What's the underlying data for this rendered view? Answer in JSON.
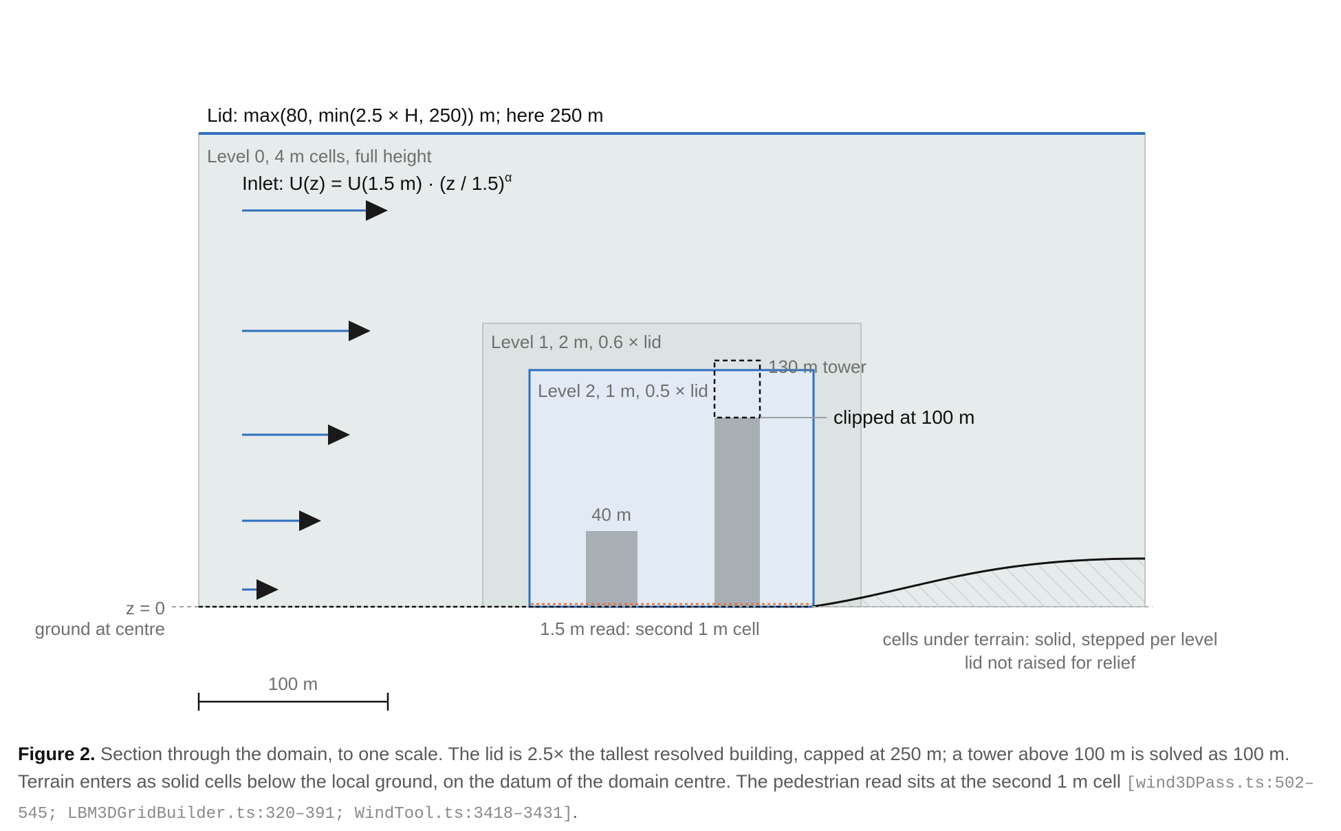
{
  "lid": {
    "label": "Lid: max(80, min(2.5 × H, 250)) m; here 250 m",
    "color": "#2f6fbf"
  },
  "levels": [
    {
      "label": "Level 0, 4 m cells, full height",
      "fill": "#e6ebeb"
    },
    {
      "label": "Level 1, 2 m, 0.6 × lid",
      "fill": "#dce3e3"
    },
    {
      "label": "Level 2, 1 m, 0.5 × lid",
      "fill": "#e2ebf5",
      "border": "#2f6fbf"
    }
  ],
  "inlet": {
    "label_main": "Inlet: U(z) = U(1.5 m) · (z / 1.5)",
    "label_sup": "α",
    "arrow_color": "#2f6fbf",
    "arrowhead_color": "#1a1a1a"
  },
  "buildings": {
    "short": {
      "label": "40 m",
      "height_m": 40
    },
    "tower": {
      "label": "130 m tower",
      "height_m": 130,
      "clip_label": "clipped at 100 m",
      "clipped_height_m": 100
    }
  },
  "ground": {
    "z_label": "z = 0",
    "ground_label": "ground at centre",
    "read_label": "1.5 m read: second 1 m cell",
    "read_color": "#e07040"
  },
  "terrain": {
    "line1": "cells under terrain: solid, stepped per level",
    "line2": "lid not raised for relief"
  },
  "scale_bar": {
    "label": "100 m"
  },
  "caption": {
    "fig_label": "Figure 2.",
    "text": " Section through the domain, to one scale. The lid is 2.5× the tallest resolved building, capped at 250 m; a tower above 100 m is solved as 100 m. Terrain enters as solid cells below the local ground, on the datum of the domain centre. The pedestrian read sits at the second 1 m cell ",
    "refs": "[wind3DPass.ts:502–545; LBM3DGridBuilder.ts:320–391; WindTool.ts:3418–3431]",
    "end": "."
  }
}
